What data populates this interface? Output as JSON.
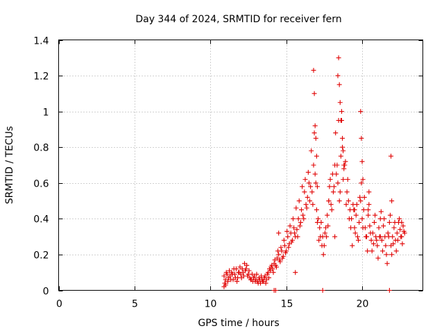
{
  "chart_data": {
    "type": "scatter",
    "title": "Day 344 of 2024, SRMTID for receiver fern",
    "xlabel": "GPS time / hours",
    "ylabel": "SRMTID / TECUs",
    "xlim": [
      0,
      24
    ],
    "ylim": [
      0,
      1.4
    ],
    "xticks": [
      0,
      5,
      10,
      15,
      20
    ],
    "xtick_labels": [
      "0",
      "5",
      "10",
      "15",
      "20"
    ],
    "yticks": [
      0,
      0.2,
      0.4,
      0.6,
      0.8,
      1.0,
      1.2,
      1.4
    ],
    "ytick_labels": [
      "0",
      "0.2",
      "0.4",
      "0.6",
      "0.8",
      "1",
      "1.2",
      "1.4"
    ],
    "grid": true,
    "marker": "+",
    "marker_color": "#e00000",
    "series": [
      {
        "name": "SRMTID",
        "x": [
          10.9,
          11.0,
          11.1,
          11.2,
          11.3,
          11.4,
          11.5,
          11.6,
          11.7,
          11.8,
          11.9,
          12.0,
          12.1,
          12.2,
          12.3,
          12.4,
          12.5,
          12.6,
          12.7,
          12.8,
          12.9,
          13.0,
          13.1,
          13.2,
          13.3,
          13.4,
          13.5,
          13.6,
          13.7,
          13.8,
          13.9,
          14.0,
          14.1,
          14.2,
          14.3,
          14.4,
          14.5,
          14.6,
          14.7,
          14.8,
          14.9,
          15.0,
          15.1,
          15.2,
          15.3,
          15.4,
          15.5,
          15.6,
          15.7,
          15.8,
          15.9,
          16.0,
          16.1,
          16.2,
          16.3,
          16.4,
          16.5,
          16.6,
          16.7,
          16.8,
          16.9,
          17.0,
          17.1,
          17.2,
          17.3,
          17.4,
          17.5,
          17.6,
          17.7,
          17.8,
          17.9,
          18.0,
          18.1,
          18.2,
          18.3,
          18.4,
          18.5,
          18.6,
          18.7,
          18.8,
          18.9,
          19.0,
          19.1,
          19.2,
          19.3,
          19.4,
          19.5,
          19.6,
          19.7,
          19.8,
          19.9,
          20.0,
          20.1,
          20.2,
          20.3,
          20.4,
          20.5,
          20.6,
          20.7,
          20.8,
          20.9,
          21.0,
          21.1,
          21.2,
          21.3,
          21.4,
          21.5,
          21.6,
          21.7,
          21.8,
          21.9,
          22.0,
          22.1,
          22.2,
          22.3,
          22.4,
          22.5,
          22.6,
          22.7,
          22.8,
          10.95,
          11.05,
          11.15,
          11.25,
          11.35,
          11.45,
          11.55,
          11.65,
          11.75,
          11.85,
          11.95,
          12.05,
          12.15,
          12.25,
          12.35,
          12.45,
          12.55,
          12.65,
          12.75,
          12.85,
          12.95,
          13.05,
          13.15,
          13.25,
          13.35,
          13.45,
          13.55,
          13.65,
          13.75,
          13.85,
          13.95,
          14.05,
          14.15,
          14.25,
          14.35,
          14.45,
          14.55,
          14.65,
          14.75,
          14.85,
          14.95,
          15.05,
          15.15,
          15.25,
          15.35,
          15.45,
          15.55,
          15.65,
          15.75,
          15.85,
          15.95,
          16.05,
          16.15,
          16.25,
          16.35,
          16.45,
          16.55,
          16.65,
          16.75,
          16.85,
          16.95,
          17.05,
          17.15,
          17.25,
          17.35,
          17.45,
          17.55,
          17.65,
          17.75,
          17.85,
          17.95,
          18.05,
          18.15,
          18.25,
          18.35,
          18.45,
          18.55,
          18.65,
          18.75,
          18.85,
          18.95,
          19.05,
          19.15,
          19.25,
          19.35,
          19.45,
          19.55,
          19.65,
          19.75,
          19.85,
          19.95,
          20.05,
          20.15,
          20.25,
          20.35,
          20.45,
          20.55,
          20.65,
          20.75,
          20.85,
          20.95,
          21.05,
          21.15,
          21.25,
          21.35,
          21.45,
          21.55,
          21.65,
          21.75,
          21.85,
          21.95,
          22.05,
          22.15,
          22.25,
          22.35,
          22.45,
          22.55,
          22.65,
          22.75,
          16.8,
          16.85,
          16.9,
          16.95,
          18.4,
          18.45,
          18.5,
          18.55,
          18.6,
          18.65,
          18.7,
          18.75,
          18.8,
          19.9,
          19.95,
          20.0,
          20.05,
          17.0,
          17.05,
          20.4,
          20.45,
          21.9,
          21.95,
          14.5,
          15.6,
          17.8,
          18.2,
          19.5,
          21.2,
          22.6,
          10.9,
          11.0,
          14.2,
          14.3,
          17.4,
          21.8
        ],
        "y": [
          0.08,
          0.06,
          0.09,
          0.07,
          0.08,
          0.1,
          0.06,
          0.09,
          0.12,
          0.07,
          0.1,
          0.09,
          0.12,
          0.08,
          0.11,
          0.14,
          0.09,
          0.07,
          0.06,
          0.05,
          0.08,
          0.06,
          0.05,
          0.07,
          0.04,
          0.06,
          0.05,
          0.08,
          0.06,
          0.1,
          0.12,
          0.13,
          0.12,
          0.15,
          0.14,
          0.18,
          0.2,
          0.16,
          0.22,
          0.19,
          0.25,
          0.22,
          0.3,
          0.26,
          0.32,
          0.28,
          0.35,
          0.3,
          0.34,
          0.4,
          0.36,
          0.45,
          0.42,
          0.55,
          0.48,
          0.52,
          0.6,
          0.58,
          0.55,
          0.7,
          0.65,
          0.45,
          0.4,
          0.35,
          0.38,
          0.3,
          0.25,
          0.35,
          0.42,
          0.5,
          0.62,
          0.45,
          0.55,
          0.7,
          0.65,
          0.6,
          0.5,
          0.75,
          0.8,
          0.68,
          0.72,
          0.55,
          0.5,
          0.45,
          0.4,
          0.48,
          0.35,
          0.42,
          0.3,
          0.38,
          0.5,
          0.4,
          0.45,
          0.35,
          0.3,
          0.42,
          0.36,
          0.28,
          0.32,
          0.38,
          0.3,
          0.25,
          0.35,
          0.4,
          0.28,
          0.36,
          0.3,
          0.2,
          0.32,
          0.38,
          0.25,
          0.3,
          0.35,
          0.28,
          0.32,
          0.38,
          0.34,
          0.3,
          0.36,
          0.32,
          0.04,
          0.1,
          0.05,
          0.11,
          0.06,
          0.09,
          0.12,
          0.07,
          0.05,
          0.1,
          0.13,
          0.07,
          0.1,
          0.15,
          0.12,
          0.08,
          0.11,
          0.06,
          0.09,
          0.07,
          0.05,
          0.09,
          0.04,
          0.06,
          0.08,
          0.05,
          0.07,
          0.04,
          0.09,
          0.07,
          0.11,
          0.14,
          0.1,
          0.17,
          0.13,
          0.22,
          0.17,
          0.24,
          0.18,
          0.28,
          0.21,
          0.33,
          0.24,
          0.36,
          0.27,
          0.4,
          0.32,
          0.46,
          0.3,
          0.5,
          0.38,
          0.58,
          0.4,
          0.62,
          0.46,
          0.66,
          0.5,
          0.78,
          0.48,
          0.88,
          0.6,
          0.38,
          0.28,
          0.3,
          0.25,
          0.2,
          0.32,
          0.3,
          0.36,
          0.58,
          0.48,
          0.65,
          0.58,
          0.88,
          0.7,
          0.95,
          0.55,
          0.95,
          0.62,
          0.7,
          0.48,
          0.62,
          0.4,
          0.35,
          0.25,
          0.45,
          0.32,
          0.48,
          0.28,
          0.52,
          0.6,
          0.35,
          0.52,
          0.3,
          0.22,
          0.48,
          0.32,
          0.22,
          0.26,
          0.42,
          0.28,
          0.18,
          0.3,
          0.44,
          0.22,
          0.4,
          0.25,
          0.15,
          0.3,
          0.42,
          0.2,
          0.26,
          0.38,
          0.22,
          0.28,
          0.4,
          0.3,
          0.26,
          0.33,
          1.23,
          1.1,
          0.92,
          0.85,
          1.2,
          1.3,
          1.15,
          1.05,
          0.95,
          1.0,
          0.85,
          0.78,
          0.7,
          1.0,
          0.85,
          0.72,
          0.62,
          0.75,
          0.58,
          0.45,
          0.55,
          0.75,
          0.5,
          0.32,
          0.1,
          0.5,
          0.3,
          0.45,
          0.3,
          0.38,
          0.02,
          0.03,
          0.0,
          0.0,
          0.0,
          0.0
        ]
      }
    ]
  }
}
